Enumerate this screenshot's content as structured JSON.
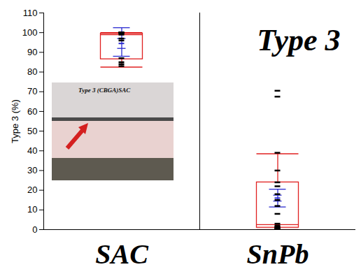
{
  "chart_data": {
    "type": "box",
    "title": "Type 3",
    "y_label": "Type 3 (%)",
    "categories": [
      "SAC",
      "SnPb"
    ],
    "boxes": [
      {
        "min": 82.5,
        "q1": 86.5,
        "median": 99,
        "q3": 99.5,
        "max": 100
      },
      {
        "min": 0,
        "q1": 1,
        "median": 2.5,
        "q3": 24,
        "max": 38.5
      }
    ],
    "means": [
      94.5,
      16
    ],
    "mean_error": [
      {
        "low": 88,
        "high": 102.5
      },
      {
        "low": 11.5,
        "high": 20.5
      }
    ],
    "mean_ci": [
      {
        "low": 92,
        "high": 97
      },
      {
        "low": 14.5,
        "high": 17.5
      }
    ],
    "reference_lines": [
      94.5,
      16
    ],
    "points": [
      [
        100,
        100,
        100,
        100,
        99.5,
        99,
        97,
        96,
        87,
        85,
        84,
        83
      ],
      [
        70.5,
        67.5,
        39,
        30,
        24,
        22,
        18,
        15,
        12,
        8,
        3,
        2,
        1.5,
        1,
        1,
        0.5,
        0.5,
        0,
        0
      ]
    ],
    "colors": {
      "box": "#e02020",
      "mean": "#2a2ad0",
      "reference": "#22cc22",
      "points": "#000000"
    },
    "annotations": [
      {
        "text": "Type 3 (CBGA)SAC"
      }
    ],
    "ylim": [
      0,
      110
    ],
    "yticks": [
      0,
      10,
      20,
      30,
      40,
      50,
      60,
      70,
      80,
      90,
      100,
      110
    ],
    "grid": false
  }
}
